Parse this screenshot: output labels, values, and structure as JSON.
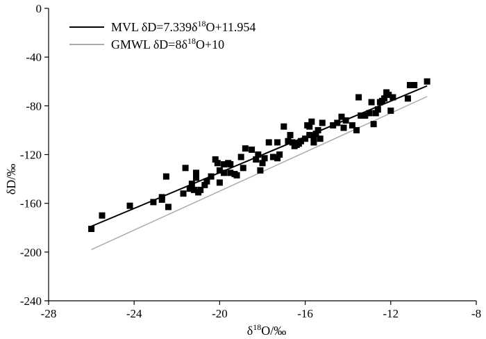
{
  "chart_data": {
    "type": "scatter",
    "xlabel": {
      "pre": "δ",
      "sup": "18",
      "post": "O/‰"
    },
    "ylabel": "δD/‰",
    "xlim": [
      -28,
      -8
    ],
    "ylim": [
      -240,
      0
    ],
    "x_ticks": [
      -28,
      -24,
      -20,
      -16,
      -12,
      -8
    ],
    "y_ticks": [
      0,
      -40,
      -80,
      -120,
      -160,
      -200,
      -240
    ],
    "x_tick_labels": [
      "-28",
      "-24",
      "-20",
      "-16",
      "-12",
      "-8"
    ],
    "y_tick_labels": [
      "0",
      "-40",
      "-80",
      "-120",
      "-160",
      "-200",
      "-240"
    ],
    "legend": {
      "position": "top-left",
      "entries": [
        {
          "pre": "MVL δD=7.339δ",
          "sup": "18",
          "post": "O+11.954",
          "color": "#000000"
        },
        {
          "pre": "GMWL δD=8δ",
          "sup": "18",
          "post": "O+10",
          "color": "#aaaaaa"
        }
      ]
    },
    "lines": [
      {
        "slope": 7.339,
        "intercept": 11.954,
        "x_range": [
          -26,
          -10.3
        ],
        "color": "#000000"
      },
      {
        "slope": 8,
        "intercept": 10,
        "x_range": [
          -26,
          -10.3
        ],
        "color": "#aaaaaa"
      }
    ],
    "points": [
      [
        -26.0,
        -181
      ],
      [
        -25.5,
        -170
      ],
      [
        -24.2,
        -162
      ],
      [
        -23.1,
        -159
      ],
      [
        -22.7,
        -155
      ],
      [
        -22.7,
        -157
      ],
      [
        -22.5,
        -138
      ],
      [
        -22.4,
        -163
      ],
      [
        -21.7,
        -152
      ],
      [
        -21.6,
        -131
      ],
      [
        -21.4,
        -148
      ],
      [
        -21.3,
        -144
      ],
      [
        -21.2,
        -149
      ],
      [
        -21.1,
        -139
      ],
      [
        -21.1,
        -135
      ],
      [
        -21.0,
        -151
      ],
      [
        -20.9,
        -149
      ],
      [
        -20.7,
        -145
      ],
      [
        -20.6,
        -142
      ],
      [
        -20.4,
        -138
      ],
      [
        -20.2,
        -124
      ],
      [
        -20.1,
        -127
      ],
      [
        -20.0,
        -133
      ],
      [
        -20.0,
        -143
      ],
      [
        -19.8,
        -128
      ],
      [
        -19.8,
        -135
      ],
      [
        -19.6,
        -127
      ],
      [
        -19.5,
        -135
      ],
      [
        -19.5,
        -128
      ],
      [
        -19.3,
        -136
      ],
      [
        -19.2,
        -137
      ],
      [
        -19.0,
        -122
      ],
      [
        -18.9,
        -131
      ],
      [
        -18.8,
        -115
      ],
      [
        -18.5,
        -116
      ],
      [
        -18.3,
        -124
      ],
      [
        -18.2,
        -120
      ],
      [
        -18.1,
        -133
      ],
      [
        -18.0,
        -127
      ],
      [
        -17.9,
        -123
      ],
      [
        -17.7,
        -110
      ],
      [
        -17.5,
        -122
      ],
      [
        -17.3,
        -123
      ],
      [
        -17.3,
        -110
      ],
      [
        -17.2,
        -120
      ],
      [
        -17.0,
        -97
      ],
      [
        -16.8,
        -109
      ],
      [
        -16.7,
        -104
      ],
      [
        -16.6,
        -110
      ],
      [
        -16.5,
        -113
      ],
      [
        -16.4,
        -112
      ],
      [
        -16.3,
        -111
      ],
      [
        -16.2,
        -109
      ],
      [
        -16.0,
        -107
      ],
      [
        -15.9,
        -96
      ],
      [
        -15.8,
        -104
      ],
      [
        -15.8,
        -97
      ],
      [
        -15.7,
        -93
      ],
      [
        -15.6,
        -106
      ],
      [
        -15.6,
        -110
      ],
      [
        -15.5,
        -103
      ],
      [
        -15.4,
        -100
      ],
      [
        -15.3,
        -107
      ],
      [
        -15.2,
        -94
      ],
      [
        -14.7,
        -96
      ],
      [
        -14.5,
        -94
      ],
      [
        -14.3,
        -89
      ],
      [
        -14.2,
        -98
      ],
      [
        -14.1,
        -92
      ],
      [
        -13.8,
        -96
      ],
      [
        -13.6,
        -100
      ],
      [
        -13.5,
        -73
      ],
      [
        -13.4,
        -88
      ],
      [
        -13.2,
        -88
      ],
      [
        -13.0,
        -86
      ],
      [
        -12.9,
        -77
      ],
      [
        -12.8,
        -95
      ],
      [
        -12.7,
        -86
      ],
      [
        -12.6,
        -83
      ],
      [
        -12.5,
        -77
      ],
      [
        -12.4,
        -76
      ],
      [
        -12.3,
        -74
      ],
      [
        -12.2,
        -69
      ],
      [
        -12.1,
        -71
      ],
      [
        -12.0,
        -84
      ],
      [
        -11.9,
        -73
      ],
      [
        -11.2,
        -74
      ],
      [
        -11.1,
        -63
      ],
      [
        -10.9,
        -63
      ],
      [
        -10.3,
        -60
      ]
    ]
  }
}
